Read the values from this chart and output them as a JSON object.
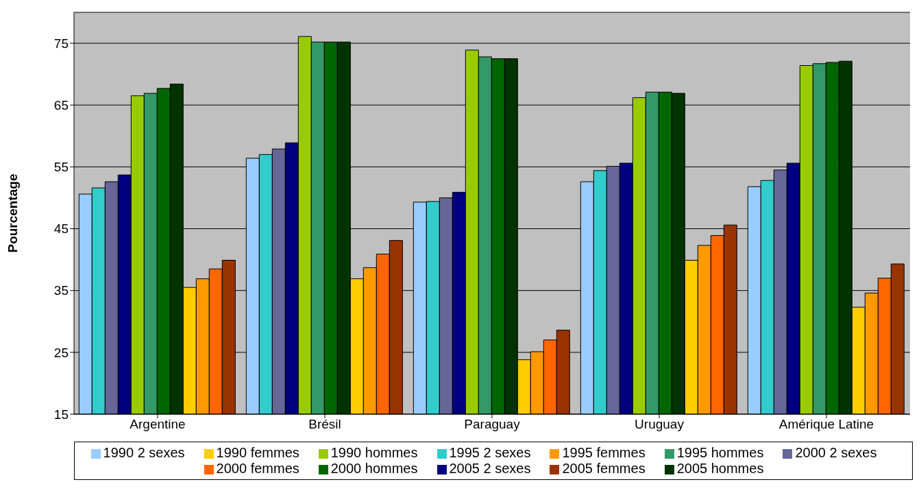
{
  "chart_data": {
    "type": "bar",
    "ylabel": "Pourcentage",
    "categories": [
      "Argentine",
      "Brésil",
      "Paraguay",
      "Uruguay",
      "Amérique Latine"
    ],
    "ylim": [
      15,
      80
    ],
    "yticks": [
      15,
      25,
      35,
      45,
      55,
      65,
      75
    ],
    "grid": "y",
    "legend": "bottom",
    "series": [
      {
        "name": "1990 2 sexes",
        "color": "#99ccff",
        "values": [
          50.6,
          56.4,
          49.3,
          52.6,
          51.8
        ]
      },
      {
        "name": "1995 2 sexes",
        "color": "#33cccc",
        "values": [
          51.6,
          57.0,
          49.4,
          54.4,
          52.8
        ]
      },
      {
        "name": "2000 2 sexes",
        "color": "#666699",
        "values": [
          52.6,
          57.9,
          50.0,
          55.1,
          54.5
        ]
      },
      {
        "name": "2005 2 sexes",
        "color": "#000080",
        "values": [
          53.7,
          58.9,
          50.9,
          55.6,
          55.6
        ]
      },
      {
        "name": "1990 hommes",
        "color": "#99cc00",
        "values": [
          66.5,
          76.1,
          73.9,
          66.2,
          71.4
        ]
      },
      {
        "name": "1995 hommes",
        "color": "#339966",
        "values": [
          66.9,
          75.2,
          72.8,
          67.1,
          71.7
        ]
      },
      {
        "name": "2000 hommes",
        "color": "#006600",
        "values": [
          67.7,
          75.2,
          72.5,
          67.1,
          71.9
        ]
      },
      {
        "name": "2005 hommes",
        "color": "#003300",
        "values": [
          68.4,
          75.2,
          72.5,
          66.9,
          72.1
        ]
      },
      {
        "name": "1990 femmes",
        "color": "#ffcc00",
        "values": [
          35.5,
          36.9,
          23.8,
          39.9,
          32.3
        ]
      },
      {
        "name": "1995 femmes",
        "color": "#ff9900",
        "values": [
          36.9,
          38.7,
          25.1,
          42.3,
          34.6
        ]
      },
      {
        "name": "2000 femmes",
        "color": "#ff6600",
        "values": [
          38.5,
          40.9,
          27.0,
          43.9,
          37.0
        ]
      },
      {
        "name": "2005 femmes",
        "color": "#993300",
        "values": [
          39.9,
          43.1,
          28.6,
          45.6,
          39.3
        ]
      }
    ]
  }
}
